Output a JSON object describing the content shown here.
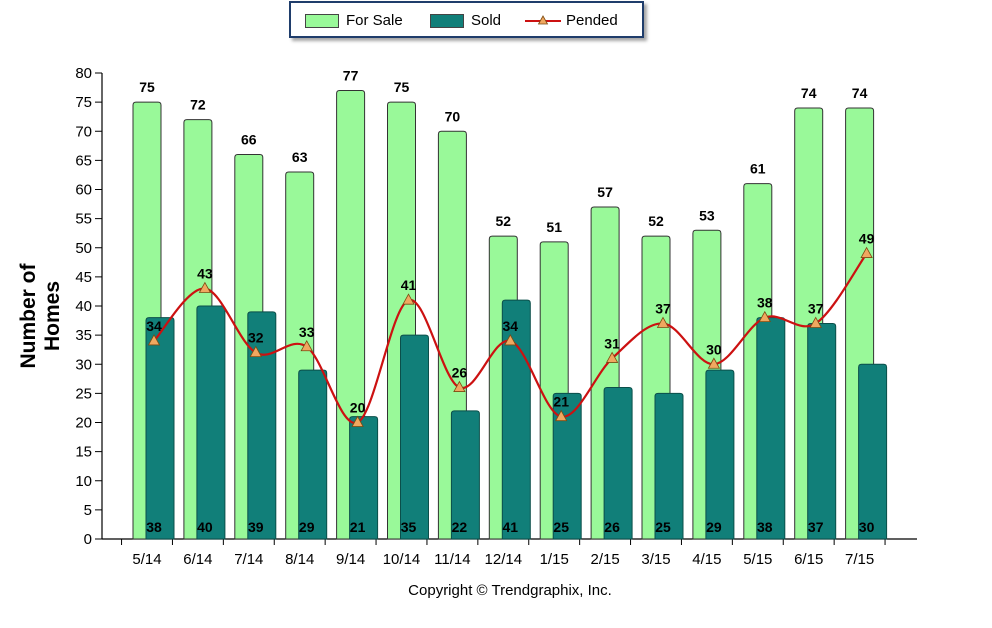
{
  "chart_data": {
    "type": "bar",
    "title": "",
    "xlabel": "",
    "ylabel": "Number of Homes",
    "ylim": [
      0,
      80
    ],
    "ytick_step": 5,
    "categories": [
      "5/14",
      "6/14",
      "7/14",
      "8/14",
      "9/14",
      "10/14",
      "11/14",
      "12/14",
      "1/15",
      "2/15",
      "3/15",
      "4/15",
      "5/15",
      "6/15",
      "7/15"
    ],
    "series": [
      {
        "name": "For Sale",
        "kind": "bar",
        "color": "#99f999",
        "values": [
          75,
          72,
          66,
          63,
          77,
          75,
          70,
          52,
          51,
          57,
          52,
          53,
          61,
          74,
          74
        ]
      },
      {
        "name": "Sold",
        "kind": "bar",
        "color": "#117f79",
        "values": [
          38,
          40,
          39,
          29,
          21,
          35,
          22,
          41,
          25,
          26,
          25,
          29,
          38,
          37,
          30
        ]
      },
      {
        "name": "Pended",
        "kind": "line",
        "color": "#cc1111",
        "marker_color": "#f0a860",
        "values": [
          34,
          43,
          32,
          33,
          20,
          41,
          26,
          34,
          21,
          31,
          37,
          30,
          38,
          37,
          49
        ]
      }
    ],
    "legend_position": "top",
    "grid": false
  },
  "copyright": "Copyright © Trendgraphix, Inc."
}
